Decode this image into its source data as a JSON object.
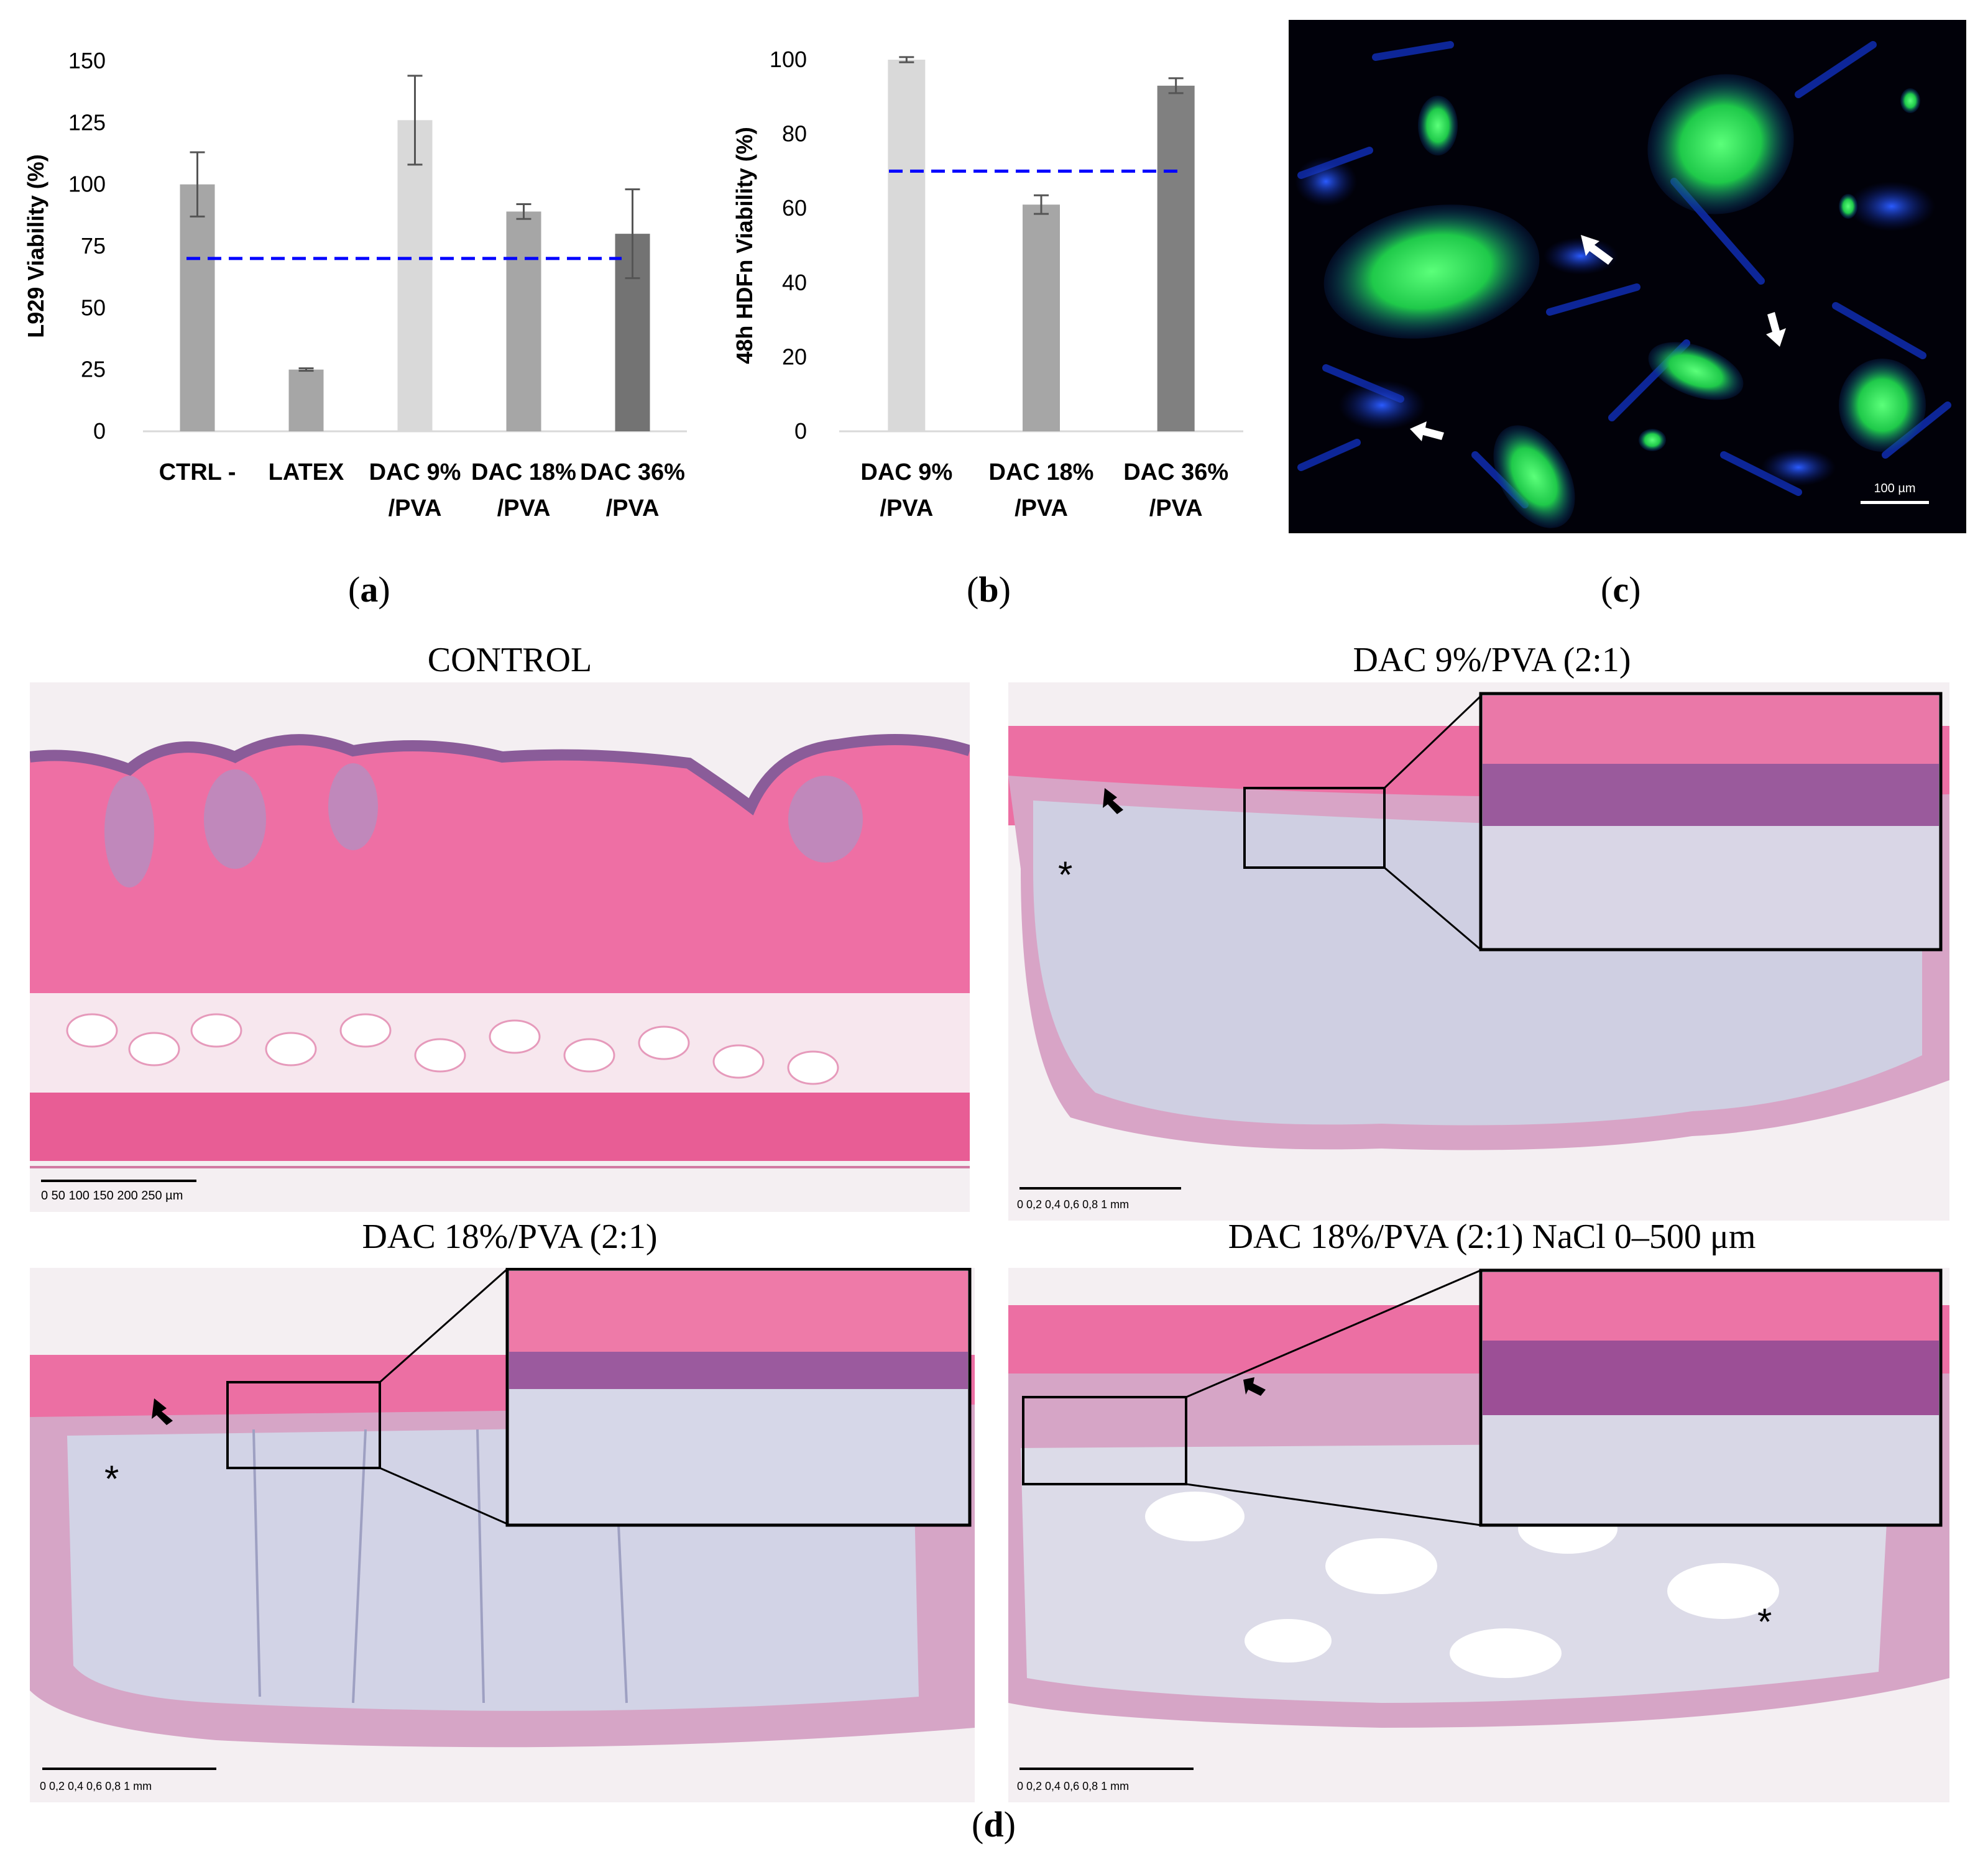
{
  "panels": {
    "a": {
      "label_open": "(",
      "label_letter": "a",
      "label_close": ")"
    },
    "b": {
      "label_open": "(",
      "label_letter": "b",
      "label_close": ")"
    },
    "c": {
      "label_open": "(",
      "label_letter": "c",
      "label_close": ")",
      "scale_text": "100 µm"
    },
    "d": {
      "label_open": "(",
      "label_letter": "d",
      "label_close": ")"
    }
  },
  "chart_data": [
    {
      "type": "bar",
      "title": "",
      "xlabel": "",
      "ylabel": "L929 Viability (%)",
      "ylim": [
        0,
        150
      ],
      "yticks": [
        "0",
        "25",
        "50",
        "75",
        "100",
        "125",
        "150"
      ],
      "categories": [
        [
          "CTRL -"
        ],
        [
          "LATEX"
        ],
        [
          "DAC 9%",
          "/PVA"
        ],
        [
          "DAC 18%",
          "/PVA"
        ],
        [
          "DAC 36%",
          "/PVA"
        ]
      ],
      "values": [
        100,
        25,
        126,
        89,
        80
      ],
      "errors": [
        13,
        0.5,
        18,
        3,
        18
      ],
      "bar_colors": [
        "#a6a6a6",
        "#a6a6a6",
        "#d9d9d9",
        "#a6a6a6",
        "#737373"
      ],
      "threshold": 70,
      "threshold_color": "#0000ff",
      "grid": false
    },
    {
      "type": "bar",
      "title": "",
      "xlabel": "",
      "ylabel": "48h HDFn Viability (%)",
      "ylim": [
        0,
        100
      ],
      "yticks": [
        "0",
        "20",
        "40",
        "60",
        "80",
        "100"
      ],
      "categories": [
        [
          "DAC 9%",
          "/PVA"
        ],
        [
          "DAC 18%",
          "/PVA"
        ],
        [
          "DAC 36%",
          "/PVA"
        ]
      ],
      "values": [
        100,
        61,
        93
      ],
      "errors": [
        0.7,
        2.5,
        2
      ],
      "bar_colors": [
        "#d9d9d9",
        "#a6a6a6",
        "#808080"
      ],
      "threshold": 70,
      "threshold_color": "#0000ff",
      "grid": false
    }
  ],
  "histology": {
    "control": {
      "title": "CONTROL",
      "scale_text": "0  50  100  150  200  250 µm"
    },
    "dac9": {
      "title": "DAC 9%/PVA (2:1)",
      "scale_text": "0   0,2   0,4   0,6   0,8   1 mm"
    },
    "dac18": {
      "title": "DAC 18%/PVA (2:1)",
      "scale_text": "0   0,2   0,4   0,6   0,8   1 mm"
    },
    "dac18nacl": {
      "title": "DAC 18%/PVA (2:1) NaCl 0–500 μm",
      "scale_text": "0   0,2   0,4   0,6   0,8   1 mm"
    },
    "asterisk": "*"
  }
}
